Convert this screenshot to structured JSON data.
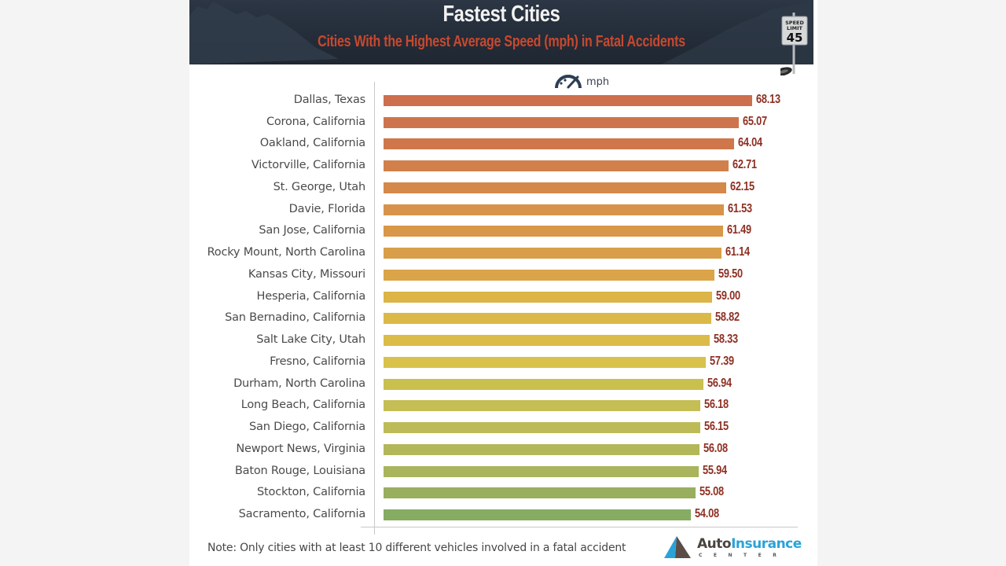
{
  "header": {
    "title": "Fastest Cities",
    "subtitle": "Cities With the Highest Average Speed (mph) in Fatal Accidents",
    "sign_top": "SPEED",
    "sign_mid": "LIMIT",
    "sign_number": "45"
  },
  "legend": {
    "icon": "speedometer-icon",
    "unit_label": "mph"
  },
  "footer": {
    "note": "Note: Only cities with at least 10 different vehicles involved in a fatal accident",
    "logo_part1": "Auto",
    "logo_part2": "Insurance",
    "logo_sub": "CENTER"
  },
  "colors": {
    "header_bg": "#232c38",
    "subtitle": "#c8482e",
    "value_text": "#8e2f22",
    "bar_top": "#cd6e4c",
    "bar_bottom": "#86ac62",
    "logo_blue": "#2aa3d8"
  },
  "chart_data": {
    "type": "bar",
    "orientation": "horizontal",
    "title": "Fastest Cities",
    "subtitle": "Cities With the Highest Average Speed (mph) in Fatal Accidents",
    "xlabel": "mph",
    "ylabel": "",
    "grid": false,
    "legend": "mph (top center)",
    "categories": [
      "Dallas, Texas",
      "Corona, California",
      "Oakland, California",
      "Victorville, California",
      "St. George, Utah",
      "Davie, Florida",
      "San Jose, California",
      "Rocky Mount, North Carolina",
      "Kansas City, Missouri",
      "Hesperia, California",
      "San Bernadino, California",
      "Salt Lake City, Utah",
      "Fresno, California",
      "Durham, North Carolina",
      "Long Beach, California",
      "San Diego, California",
      "Newport News, Virginia",
      "Baton Rouge, Louisiana",
      "Stockton, California",
      "Sacramento, California"
    ],
    "values": [
      68.13,
      65.07,
      64.04,
      62.71,
      62.15,
      61.53,
      61.49,
      61.14,
      59.5,
      59.0,
      58.82,
      58.33,
      57.39,
      56.94,
      56.18,
      56.15,
      56.08,
      55.94,
      55.08,
      54.08
    ],
    "value_labels": [
      "68.13",
      "65.07",
      "64.04",
      "62.71",
      "62.15",
      "61.53",
      "61.49",
      "61.14",
      "59.50",
      "59.00",
      "58.82",
      "58.33",
      "57.39",
      "56.94",
      "56.18",
      "56.15",
      "56.08",
      "55.94",
      "55.08",
      "54.08"
    ],
    "bar_colors": [
      "#cd6e4c",
      "#ce744c",
      "#cf774b",
      "#d2804b",
      "#d4884a",
      "#d7934a",
      "#d89749",
      "#d99e49",
      "#dba448",
      "#dcb447",
      "#dcb848",
      "#dcbc49",
      "#d8c24b",
      "#c9c050",
      "#c4be54",
      "#bdbb57",
      "#b2b75a",
      "#a9b45d",
      "#99ae5f",
      "#86ac62"
    ]
  }
}
